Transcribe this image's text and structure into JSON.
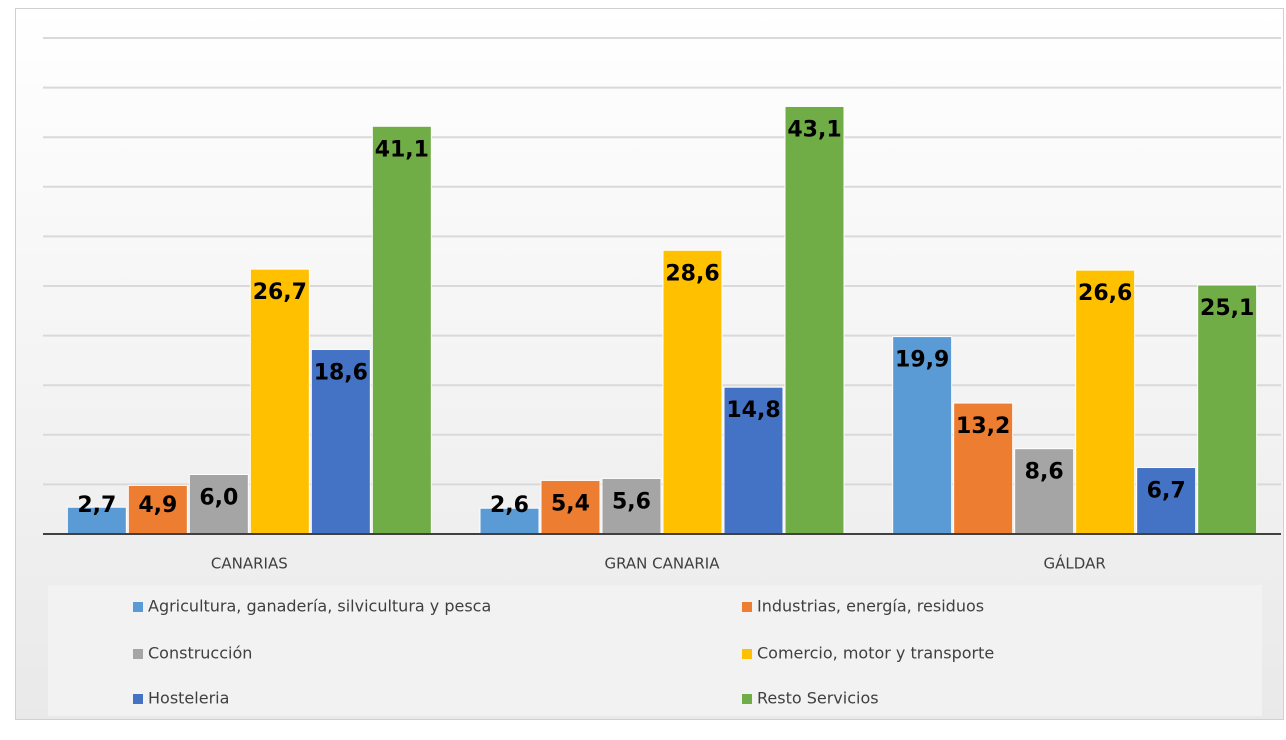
{
  "chart_data": {
    "type": "bar",
    "categories": [
      "CANARIAS",
      "GRAN CANARIA",
      "GÁLDAR"
    ],
    "series": [
      {
        "name": "Agricultura, ganadería, silvicultura y pesca",
        "color": "#5b9bd5",
        "values": [
          2.7,
          2.6,
          19.9
        ],
        "value_labels": [
          "2,7",
          "2,6",
          "19,9"
        ]
      },
      {
        "name": "Industrias, energía, residuos",
        "color": "#ed7d31",
        "values": [
          4.9,
          5.4,
          13.2
        ],
        "value_labels": [
          "4,9",
          "5,4",
          "13,2"
        ]
      },
      {
        "name": "Construcción",
        "color": "#a5a5a5",
        "values": [
          6.0,
          5.6,
          8.6
        ],
        "value_labels": [
          "6,0",
          "5,6",
          "8,6"
        ]
      },
      {
        "name": "Comercio, motor y transporte",
        "color": "#ffc000",
        "values": [
          26.7,
          28.6,
          26.6
        ],
        "value_labels": [
          "26,7",
          "28,6",
          "26,6"
        ]
      },
      {
        "name": "Hosteleria",
        "color": "#4472c4",
        "values": [
          18.6,
          14.8,
          6.7
        ],
        "value_labels": [
          "18,6",
          "14,8",
          "6,7"
        ]
      },
      {
        "name": "Resto Servicios",
        "color": "#70ad47",
        "values": [
          41.1,
          43.1,
          25.1
        ],
        "value_labels": [
          "41,1",
          "43,1",
          "25,1"
        ]
      }
    ],
    "ylim": [
      0,
      50
    ],
    "yticks": [
      0,
      5,
      10,
      15,
      20,
      25,
      30,
      35,
      40,
      45,
      50
    ],
    "grid": true,
    "legend": "bottom"
  }
}
